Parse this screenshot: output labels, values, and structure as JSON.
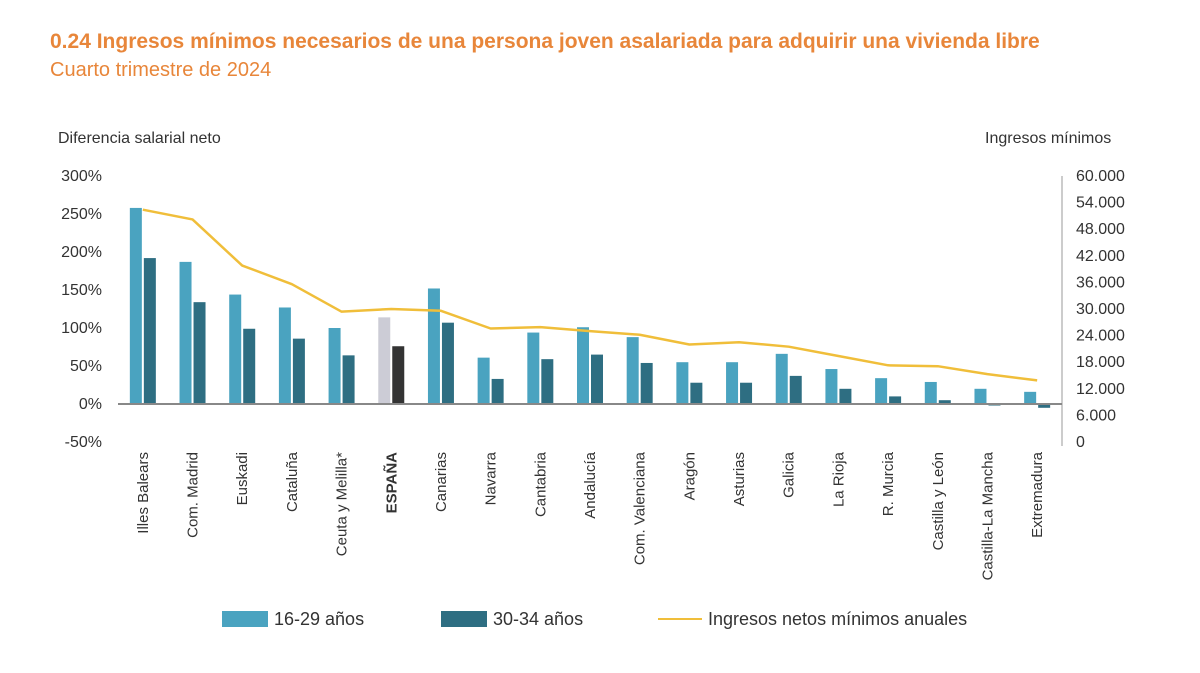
{
  "title": "0.24 Ingresos mínimos necesarios de una persona joven asalariada para adquirir una vivienda libre",
  "subtitle": "Cuarto trimestre de 2024",
  "colors": {
    "accent": "#E8863A",
    "series_16_29": "#4AA3C0",
    "series_30_34": "#2E6E82",
    "espana_16_29": "#CCCCD6",
    "espana_30_34": "#333333",
    "income_line": "#F0BE3A"
  },
  "chart_data": {
    "type": "bar",
    "categories": [
      "Illes Balears",
      "Com. Madrid",
      "Euskadi",
      "Cataluña",
      "Ceuta y Melilla*",
      "ESPAÑA",
      "Canarias",
      "Navarra",
      "Cantabria",
      "Andalucía",
      "Com. Valenciana",
      "Aragón",
      "Asturias",
      "Galicia",
      "La Rioja",
      "R. Murcia",
      "Castilla y León",
      "Castilla-La Mancha",
      "Extremadura"
    ],
    "highlight_category": "ESPAÑA",
    "series": [
      {
        "name": "16-29 años",
        "type": "bar",
        "axis": "left",
        "values": [
          258,
          187,
          144,
          127,
          100,
          114,
          152,
          61,
          94,
          101,
          88,
          55,
          55,
          66,
          46,
          34,
          29,
          20,
          16
        ]
      },
      {
        "name": "30-34 años",
        "type": "bar",
        "axis": "left",
        "values": [
          192,
          134,
          99,
          86,
          64,
          76,
          107,
          33,
          59,
          65,
          54,
          28,
          28,
          37,
          20,
          10,
          5,
          -2,
          -5
        ]
      },
      {
        "name": "Ingresos netos mínimos anuales",
        "type": "line",
        "axis": "right",
        "values": [
          52400,
          50200,
          39800,
          35600,
          29400,
          30000,
          29600,
          25600,
          25900,
          25000,
          24200,
          22000,
          22500,
          21500,
          19400,
          17300,
          17100,
          15300,
          13900
        ]
      }
    ],
    "y_left": {
      "label": "Diferencia salarial neto",
      "range": [
        -50,
        300
      ],
      "ticks": [
        "300%",
        "250%",
        "200%",
        "150%",
        "100%",
        "50%",
        "0%",
        "-50%"
      ],
      "tick_values": [
        300,
        250,
        200,
        150,
        100,
        50,
        0,
        -50
      ]
    },
    "y_right": {
      "label": "Ingresos mínimos",
      "range": [
        0,
        60000
      ],
      "ticks": [
        "60.000",
        "54.000",
        "48.000",
        "42.000",
        "36.000",
        "30.000",
        "24.000",
        "18.000",
        "12.000",
        "6.000",
        "0"
      ],
      "tick_values": [
        60000,
        54000,
        48000,
        42000,
        36000,
        30000,
        24000,
        18000,
        12000,
        6000,
        0
      ]
    },
    "grid": false,
    "legend_position": "bottom"
  },
  "legend": [
    "16-29 años",
    "30-34 años",
    "Ingresos netos mínimos anuales"
  ]
}
